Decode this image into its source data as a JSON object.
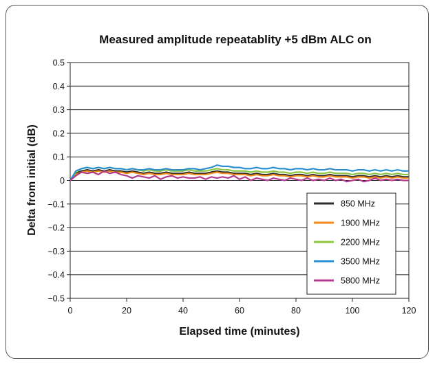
{
  "chart_data": {
    "type": "line",
    "title": "Measured amplitude repeatablity +5 dBm ALC on",
    "xlabel": "Elapsed time (minutes)",
    "ylabel": "Delta from initial (dB)",
    "xlim": [
      0,
      120
    ],
    "ylim": [
      -0.5,
      0.5
    ],
    "xticks": [
      0,
      20,
      40,
      60,
      80,
      100,
      120
    ],
    "xtick_labels": [
      "0",
      "20",
      "40",
      "60",
      "80",
      "100",
      "120"
    ],
    "yticks": [
      0.5,
      0.4,
      0.3,
      0.2,
      0.1,
      0,
      -0.1,
      -0.2,
      -0.3,
      -0.4,
      -0.5
    ],
    "ytick_labels": [
      "0.5",
      "0.4",
      "0.3",
      "0.2",
      "0.1",
      "0",
      "−0.1",
      "−0.2",
      "−0.3",
      "−0.4",
      "−0.5"
    ],
    "grid": "horizontal",
    "legend": "bottom-right",
    "x": [
      0,
      2,
      4,
      6,
      8,
      10,
      12,
      14,
      16,
      18,
      20,
      22,
      24,
      26,
      28,
      30,
      32,
      34,
      36,
      38,
      40,
      42,
      44,
      46,
      48,
      50,
      52,
      54,
      56,
      58,
      60,
      62,
      64,
      66,
      68,
      70,
      72,
      74,
      76,
      78,
      80,
      82,
      84,
      86,
      88,
      90,
      92,
      94,
      96,
      98,
      100,
      102,
      104,
      106,
      108,
      110,
      112,
      114,
      116,
      118,
      120
    ],
    "series": [
      {
        "name": "850 MHz",
        "color": "#2b2b2b",
        "values": [
          0,
          0.03,
          0.04,
          0.045,
          0.04,
          0.045,
          0.04,
          0.045,
          0.04,
          0.04,
          0.035,
          0.04,
          0.035,
          0.03,
          0.035,
          0.03,
          0.03,
          0.035,
          0.03,
          0.03,
          0.03,
          0.035,
          0.03,
          0.03,
          0.03,
          0.035,
          0.04,
          0.035,
          0.035,
          0.03,
          0.03,
          0.03,
          0.025,
          0.03,
          0.025,
          0.025,
          0.03,
          0.025,
          0.025,
          0.02,
          0.025,
          0.025,
          0.02,
          0.025,
          0.02,
          0.02,
          0.025,
          0.02,
          0.02,
          0.02,
          0.015,
          0.02,
          0.02,
          0.015,
          0.02,
          0.015,
          0.02,
          0.015,
          0.02,
          0.015,
          0.015
        ]
      },
      {
        "name": "1900 MHz",
        "color": "#f28a1e",
        "values": [
          0,
          0.025,
          0.035,
          0.04,
          0.035,
          0.04,
          0.035,
          0.04,
          0.035,
          0.035,
          0.03,
          0.035,
          0.03,
          0.025,
          0.03,
          0.025,
          0.025,
          0.03,
          0.025,
          0.025,
          0.025,
          0.03,
          0.025,
          0.025,
          0.025,
          0.03,
          0.035,
          0.03,
          0.03,
          0.025,
          0.025,
          0.025,
          0.02,
          0.025,
          0.02,
          0.02,
          0.025,
          0.02,
          0.02,
          0.015,
          0.02,
          0.02,
          0.015,
          0.02,
          0.015,
          0.015,
          0.02,
          0.015,
          0.015,
          0.015,
          0.01,
          0.015,
          0.015,
          0.01,
          0.015,
          0.01,
          0.015,
          0.01,
          0.015,
          0.01,
          0.01
        ]
      },
      {
        "name": "2200 MHz",
        "color": "#8cc63f",
        "values": [
          0,
          0.035,
          0.05,
          0.055,
          0.05,
          0.055,
          0.05,
          0.055,
          0.05,
          0.05,
          0.045,
          0.05,
          0.045,
          0.04,
          0.045,
          0.04,
          0.04,
          0.045,
          0.04,
          0.04,
          0.04,
          0.045,
          0.04,
          0.04,
          0.04,
          0.045,
          0.05,
          0.045,
          0.045,
          0.04,
          0.04,
          0.04,
          0.035,
          0.04,
          0.035,
          0.035,
          0.04,
          0.035,
          0.035,
          0.03,
          0.035,
          0.035,
          0.03,
          0.035,
          0.03,
          0.03,
          0.035,
          0.03,
          0.03,
          0.03,
          0.025,
          0.03,
          0.03,
          0.025,
          0.03,
          0.025,
          0.03,
          0.025,
          0.03,
          0.025,
          0.025
        ]
      },
      {
        "name": "3500 MHz",
        "color": "#2a8fd0",
        "values": [
          0,
          0.04,
          0.05,
          0.055,
          0.05,
          0.055,
          0.05,
          0.055,
          0.05,
          0.05,
          0.045,
          0.05,
          0.045,
          0.045,
          0.05,
          0.045,
          0.045,
          0.05,
          0.045,
          0.045,
          0.045,
          0.05,
          0.05,
          0.045,
          0.05,
          0.055,
          0.065,
          0.06,
          0.06,
          0.055,
          0.055,
          0.05,
          0.05,
          0.055,
          0.05,
          0.05,
          0.055,
          0.05,
          0.05,
          0.045,
          0.05,
          0.05,
          0.045,
          0.05,
          0.045,
          0.045,
          0.05,
          0.045,
          0.045,
          0.045,
          0.04,
          0.045,
          0.045,
          0.04,
          0.045,
          0.04,
          0.045,
          0.04,
          0.045,
          0.04,
          0.04
        ]
      },
      {
        "name": "5800 MHz",
        "color": "#b03a8f",
        "values": [
          0,
          0.02,
          0.035,
          0.03,
          0.035,
          0.025,
          0.04,
          0.03,
          0.035,
          0.025,
          0.02,
          0.01,
          0.02,
          0.015,
          0.01,
          0.02,
          0.005,
          0.015,
          0.02,
          0.01,
          0.015,
          0.01,
          0.01,
          0.015,
          0.005,
          0.015,
          0.01,
          0.015,
          0.01,
          0.02,
          0.005,
          0.015,
          0.0,
          0.01,
          0.005,
          0.0,
          0.01,
          0.005,
          0.0,
          0.01,
          0.005,
          0.0,
          0.01,
          0.0,
          0.005,
          0.0,
          0.01,
          0.0,
          0.005,
          -0.005,
          0.0,
          0.005,
          -0.005,
          0.0,
          0.01,
          0.0,
          0.005,
          0.0,
          0.005,
          0.0,
          0.0
        ]
      }
    ]
  }
}
